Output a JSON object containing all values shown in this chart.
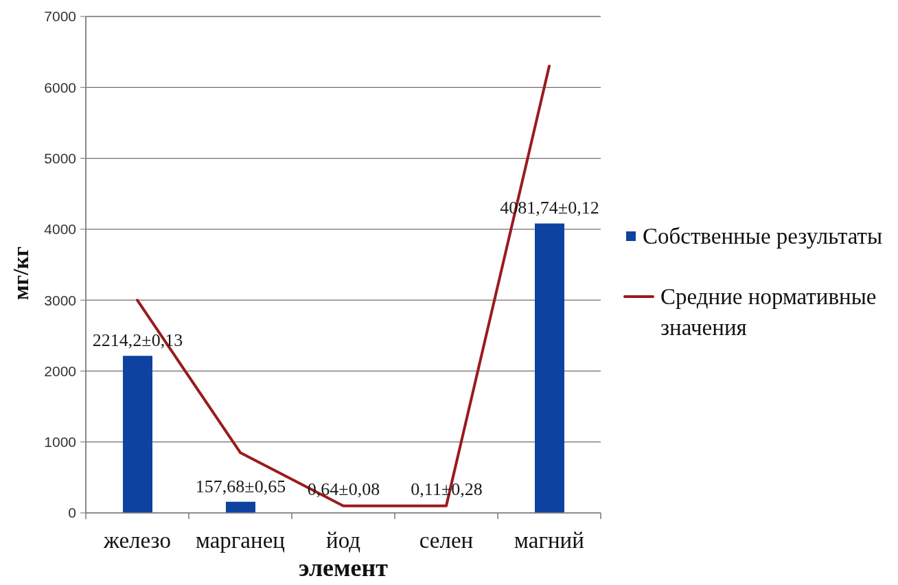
{
  "chart_data": {
    "type": "bar",
    "xlabel": "элемент",
    "ylabel": "мг/кг",
    "categories": [
      "железо",
      "марганец",
      "йод",
      "селен",
      "магний"
    ],
    "series": [
      {
        "name": "Собственные результаты",
        "color": "#0e42a0",
        "values": [
          2214.2,
          157.68,
          0.64,
          0.11,
          4081.74
        ],
        "value_labels": [
          "2214,2±0,13",
          "157,68±0,65",
          "0,64±0,08",
          "0,11±0,28",
          "4081,74±0,12"
        ]
      },
      {
        "name": "Средние нормативные значения",
        "type": "line",
        "color": "#991b1e",
        "marker": "none",
        "values": [
          3000,
          850,
          100,
          100,
          6300
        ]
      }
    ],
    "ylim": [
      0,
      7000
    ],
    "yticks": [
      0,
      1000,
      2000,
      3000,
      4000,
      5000,
      6000,
      7000
    ],
    "grid": "y",
    "legend": "right"
  }
}
